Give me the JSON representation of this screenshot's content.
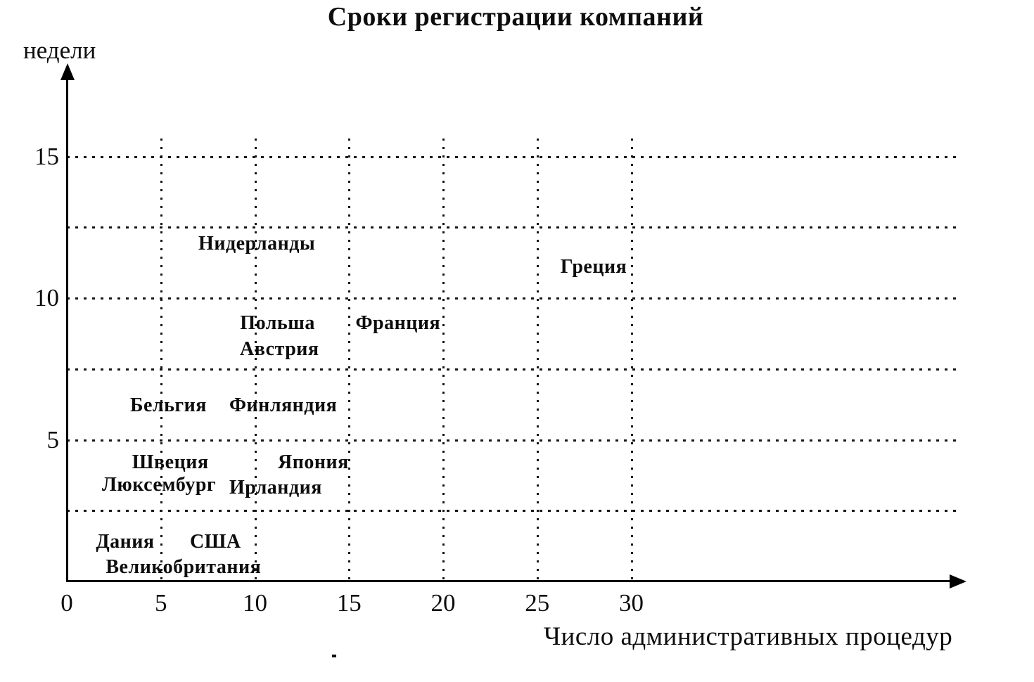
{
  "chart_data": {
    "type": "scatter",
    "title": "Сроки регистрации компаний",
    "xlabel": "Число административных процедур",
    "ylabel": "недели",
    "xlim": [
      0,
      34
    ],
    "ylim": [
      0,
      18
    ],
    "grid": "dotted",
    "legend": "none",
    "x_ticks": [
      0,
      5,
      10,
      15,
      20,
      25,
      30
    ],
    "y_ticks": [
      5,
      10,
      15
    ],
    "x_gridlines": [
      5,
      10,
      15,
      20,
      25,
      30
    ],
    "y_gridlines": [
      2.5,
      5,
      7.5,
      10,
      12.5,
      15
    ],
    "points": [
      {
        "label": "Нидерланды",
        "x": 10.1,
        "y": 11.9
      },
      {
        "label": "Греция",
        "x": 28.0,
        "y": 11.1
      },
      {
        "label": "Польша",
        "x": 11.2,
        "y": 9.1
      },
      {
        "label": "Франция",
        "x": 17.6,
        "y": 9.1
      },
      {
        "label": "Австрия",
        "x": 11.3,
        "y": 8.2
      },
      {
        "label": "Бельгия",
        "x": 5.4,
        "y": 6.2
      },
      {
        "label": "Финляндия",
        "x": 11.5,
        "y": 6.2
      },
      {
        "label": "Швеция",
        "x": 5.5,
        "y": 4.2
      },
      {
        "label": "Япония",
        "x": 13.1,
        "y": 4.2
      },
      {
        "label": "Люксембург",
        "x": 4.9,
        "y": 3.4
      },
      {
        "label": "Ирландия",
        "x": 11.1,
        "y": 3.3
      },
      {
        "label": "Дания",
        "x": 3.1,
        "y": 1.4
      },
      {
        "label": "США",
        "x": 7.9,
        "y": 1.4
      },
      {
        "label": "Великобритания",
        "x": 6.2,
        "y": 0.5
      }
    ]
  }
}
